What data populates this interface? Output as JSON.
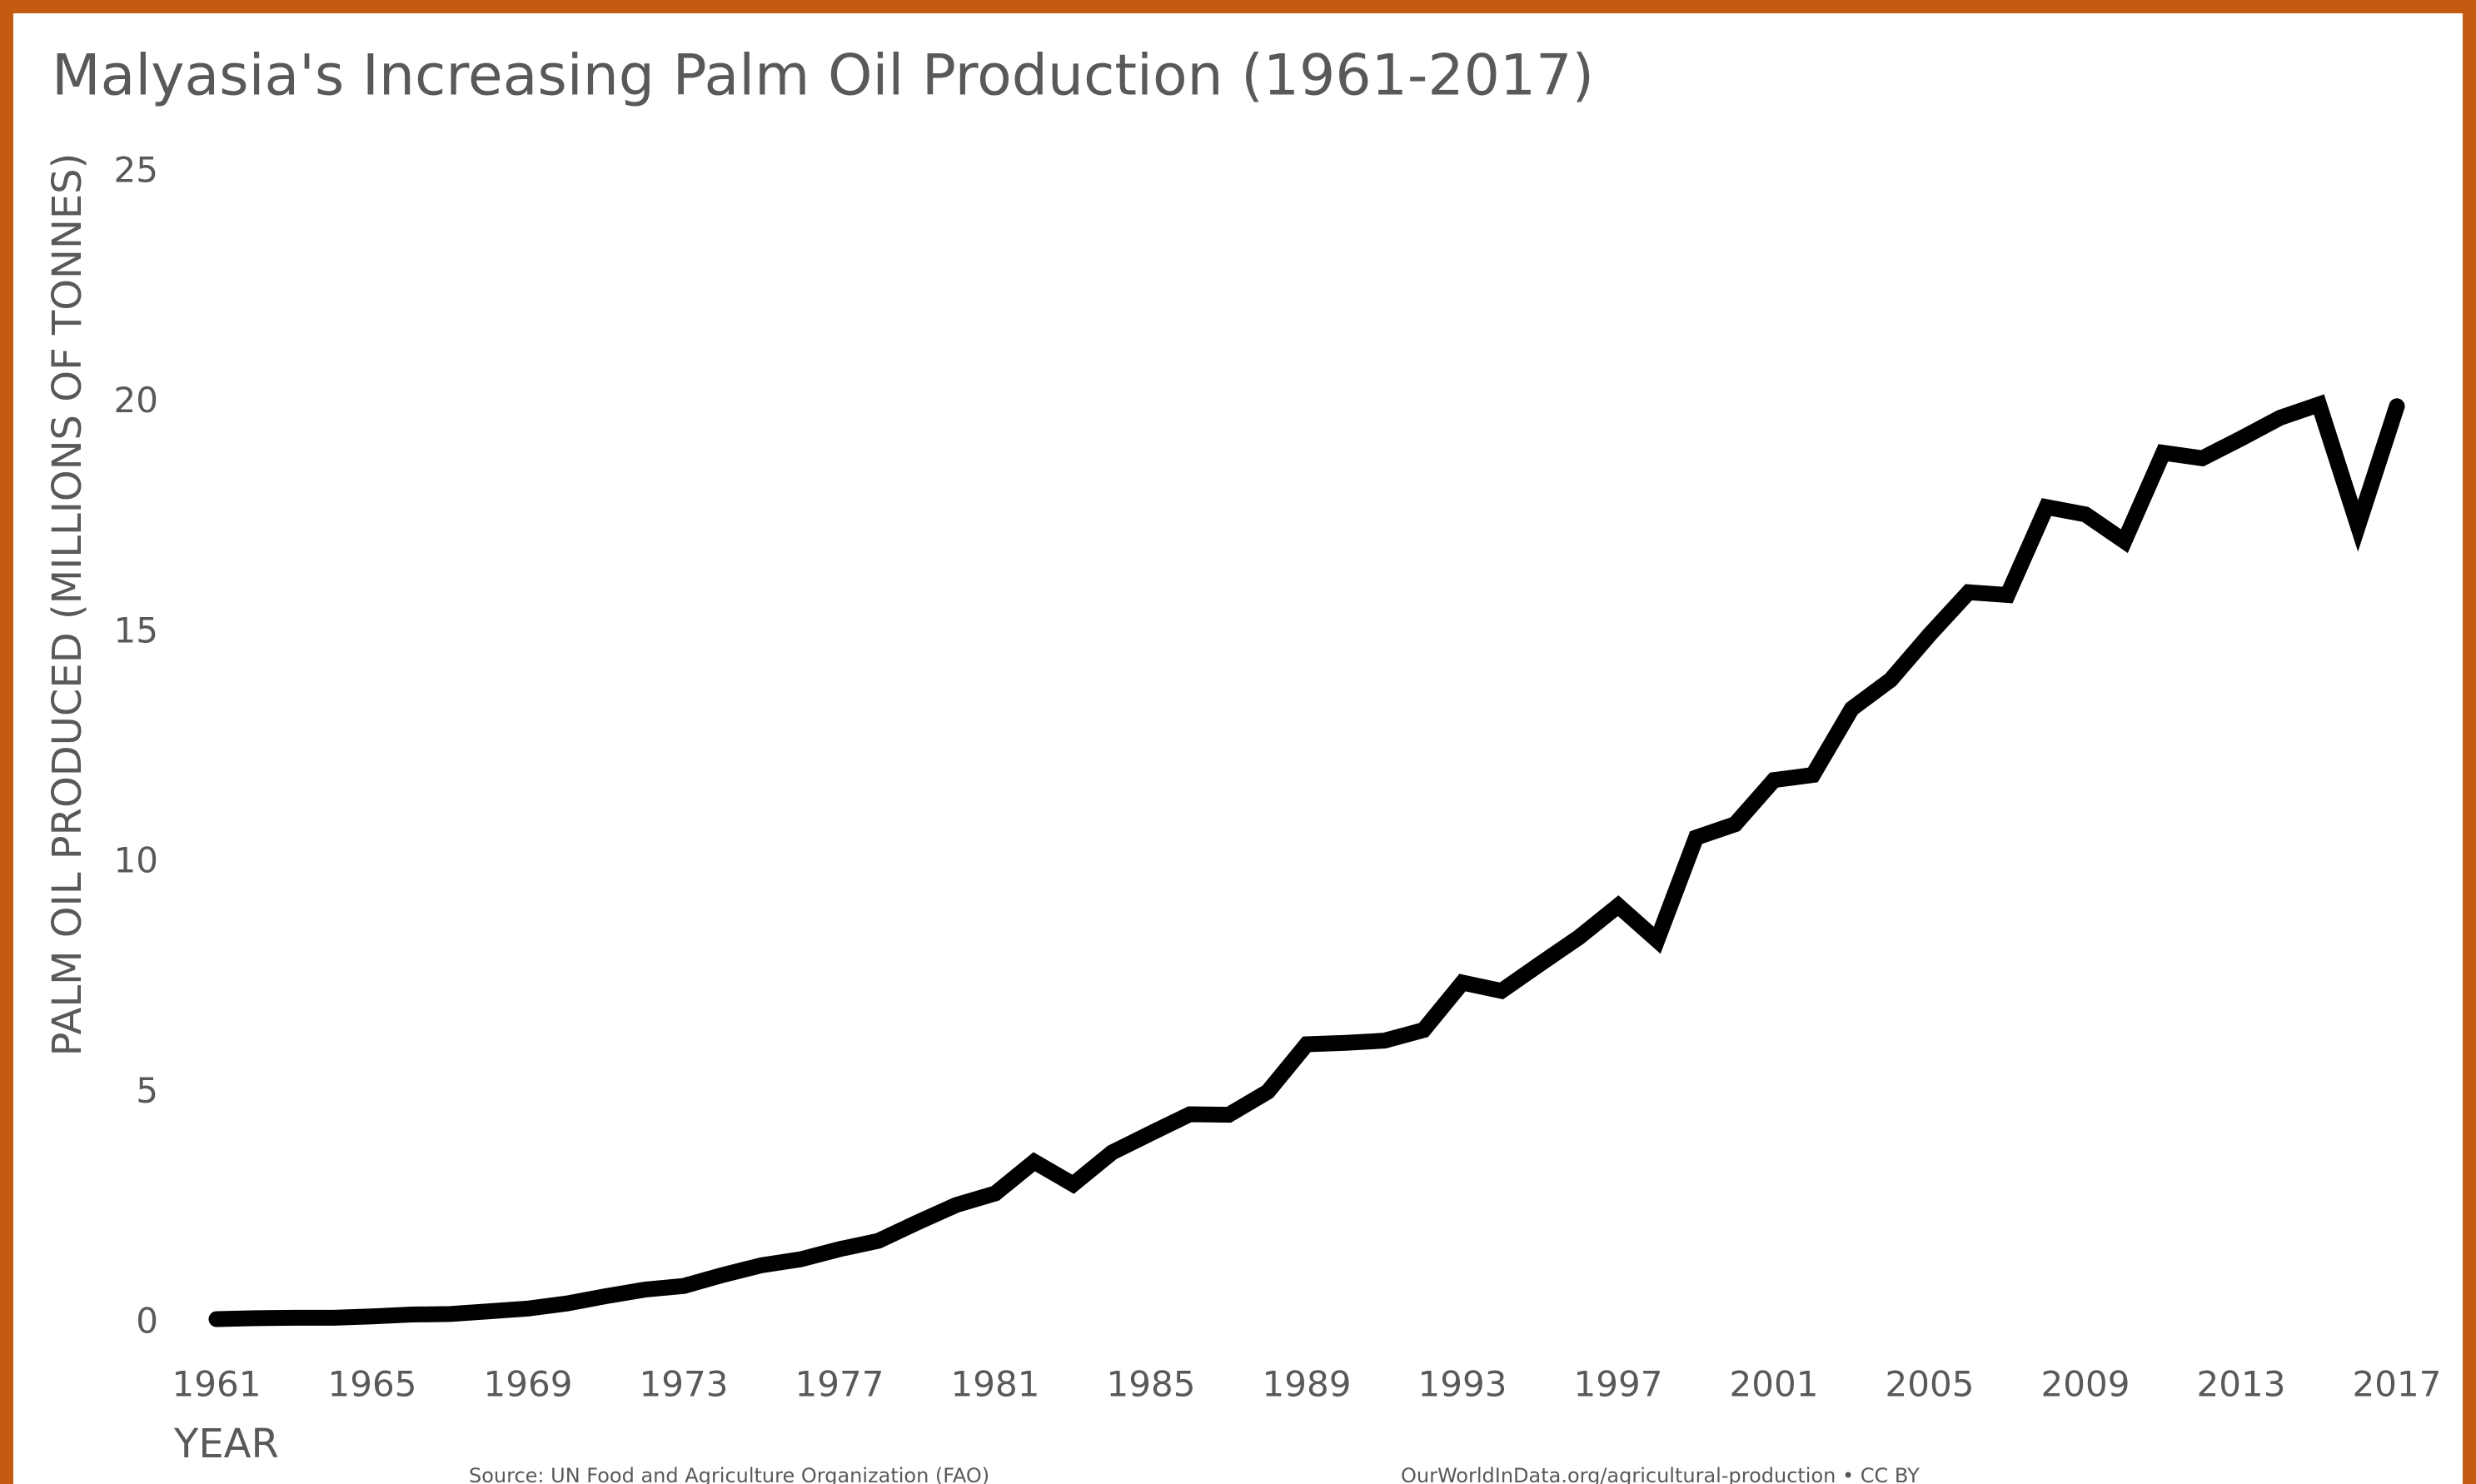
{
  "chart_data": {
    "type": "line",
    "title": "Malyasia's Increasing Palm Oil Production (1961-2017)",
    "y_label": "PALM OIL PRODUCED (MILLIONS OF TONNES)",
    "x_label": "YEAR",
    "source": "Source: UN Food and Agriculture Organization (FAO)",
    "credit": "OurWorldInData.org/agricultural-production • CC BY",
    "color": "#000000",
    "x": [
      1961,
      1962,
      1963,
      1964,
      1965,
      1966,
      1967,
      1968,
      1969,
      1970,
      1971,
      1972,
      1973,
      1974,
      1975,
      1976,
      1977,
      1978,
      1979,
      1980,
      1981,
      1982,
      1983,
      1984,
      1985,
      1986,
      1987,
      1988,
      1989,
      1990,
      1991,
      1992,
      1993,
      1994,
      1995,
      1996,
      1997,
      1998,
      1999,
      2000,
      2001,
      2002,
      2003,
      2004,
      2005,
      2006,
      2007,
      2008,
      2009,
      2010,
      2011,
      2012,
      2013,
      2014,
      2015,
      2016,
      2017
    ],
    "values": [
      0.09,
      0.11,
      0.12,
      0.12,
      0.15,
      0.19,
      0.2,
      0.26,
      0.32,
      0.43,
      0.59,
      0.73,
      0.81,
      1.05,
      1.26,
      1.39,
      1.61,
      1.79,
      2.19,
      2.57,
      2.82,
      3.51,
      3.02,
      3.71,
      4.13,
      4.54,
      4.53,
      5.03,
      6.06,
      6.09,
      6.14,
      6.37,
      7.4,
      7.22,
      7.81,
      8.39,
      9.07,
      8.32,
      10.55,
      10.84,
      11.8,
      11.91,
      13.35,
      13.98,
      14.96,
      15.88,
      15.82,
      17.73,
      17.57,
      16.99,
      18.91,
      18.79,
      19.22,
      19.67,
      19.96,
      17.32,
      19.92
    ],
    "xlim": [
      1961,
      2017
    ],
    "xticks": [
      1961,
      1965,
      1969,
      1973,
      1977,
      1981,
      1985,
      1989,
      1993,
      1997,
      2001,
      2005,
      2009,
      2013,
      2017
    ],
    "ylim": [
      0,
      25
    ],
    "yticks": [
      0,
      5,
      10,
      15,
      20,
      25
    ],
    "grid": false
  }
}
